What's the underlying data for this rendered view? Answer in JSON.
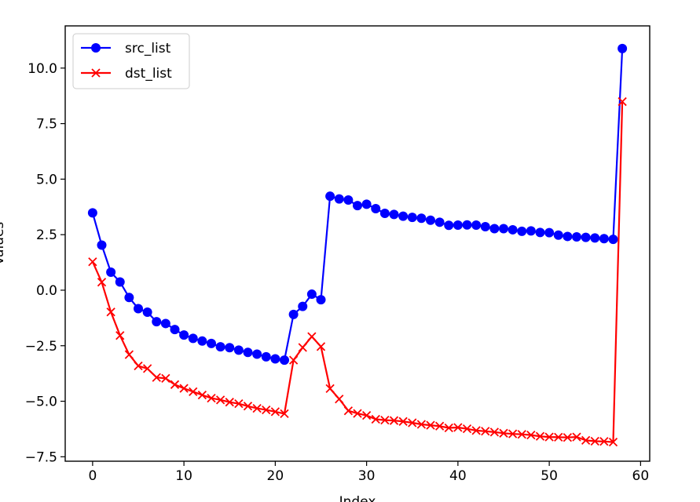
{
  "chart_data": {
    "type": "line",
    "title": "",
    "xlabel": "Index",
    "ylabel": "Values",
    "xlim": [
      -3,
      61
    ],
    "ylim": [
      -7.7,
      11.9
    ],
    "x_ticks": [
      0,
      10,
      20,
      30,
      40,
      50,
      60
    ],
    "y_ticks": [
      -7.5,
      -5.0,
      -2.5,
      0.0,
      2.5,
      5.0,
      7.5,
      10.0
    ],
    "x_tick_labels": [
      "0",
      "10",
      "20",
      "30",
      "40",
      "50",
      "60"
    ],
    "y_tick_labels": [
      "−7.5",
      "−5.0",
      "−2.5",
      "0.0",
      "2.5",
      "5.0",
      "7.5",
      "10.0"
    ],
    "grid": false,
    "legend_position": "top-left",
    "series": [
      {
        "name": "src_list",
        "color": "#0000ff",
        "marker": "circle",
        "x": [
          0,
          1,
          2,
          3,
          4,
          5,
          6,
          7,
          8,
          9,
          10,
          11,
          12,
          13,
          14,
          15,
          16,
          17,
          18,
          19,
          20,
          21,
          22,
          23,
          24,
          25,
          26,
          27,
          28,
          29,
          30,
          31,
          32,
          33,
          34,
          35,
          36,
          37,
          38,
          39,
          40,
          41,
          42,
          43,
          44,
          45,
          46,
          47,
          48,
          49,
          50,
          51,
          52,
          53,
          54,
          55,
          56,
          57,
          58
        ],
        "values": [
          3.48,
          2.03,
          0.81,
          0.37,
          -0.33,
          -0.83,
          -0.99,
          -1.42,
          -1.5,
          -1.77,
          -2.02,
          -2.17,
          -2.29,
          -2.4,
          -2.55,
          -2.59,
          -2.7,
          -2.8,
          -2.88,
          -3.0,
          -3.09,
          -3.15,
          -1.09,
          -0.73,
          -0.18,
          -0.43,
          4.23,
          4.11,
          4.06,
          3.81,
          3.87,
          3.67,
          3.46,
          3.41,
          3.33,
          3.28,
          3.24,
          3.15,
          3.06,
          2.92,
          2.93,
          2.94,
          2.93,
          2.86,
          2.77,
          2.77,
          2.72,
          2.65,
          2.67,
          2.6,
          2.59,
          2.48,
          2.42,
          2.4,
          2.38,
          2.35,
          2.32,
          2.29,
          10.88
        ]
      },
      {
        "name": "dst_list",
        "color": "#ff0000",
        "marker": "x",
        "x": [
          0,
          1,
          2,
          3,
          4,
          5,
          6,
          7,
          8,
          9,
          10,
          11,
          12,
          13,
          14,
          15,
          16,
          17,
          18,
          19,
          20,
          21,
          22,
          23,
          24,
          25,
          26,
          27,
          28,
          29,
          30,
          31,
          32,
          33,
          34,
          35,
          36,
          37,
          38,
          39,
          40,
          41,
          42,
          43,
          44,
          45,
          46,
          47,
          48,
          49,
          50,
          51,
          52,
          53,
          54,
          55,
          56,
          57,
          58
        ],
        "values": [
          1.28,
          0.36,
          -0.98,
          -2.04,
          -2.9,
          -3.41,
          -3.53,
          -3.93,
          -3.97,
          -4.25,
          -4.42,
          -4.57,
          -4.72,
          -4.86,
          -4.94,
          -5.04,
          -5.11,
          -5.22,
          -5.32,
          -5.39,
          -5.47,
          -5.56,
          -3.15,
          -2.58,
          -2.09,
          -2.54,
          -4.43,
          -4.9,
          -5.43,
          -5.55,
          -5.64,
          -5.81,
          -5.85,
          -5.87,
          -5.91,
          -5.97,
          -6.04,
          -6.08,
          -6.12,
          -6.2,
          -6.18,
          -6.24,
          -6.32,
          -6.35,
          -6.39,
          -6.44,
          -6.47,
          -6.49,
          -6.52,
          -6.58,
          -6.61,
          -6.62,
          -6.63,
          -6.61,
          -6.76,
          -6.8,
          -6.81,
          -6.84,
          8.49
        ]
      }
    ]
  }
}
